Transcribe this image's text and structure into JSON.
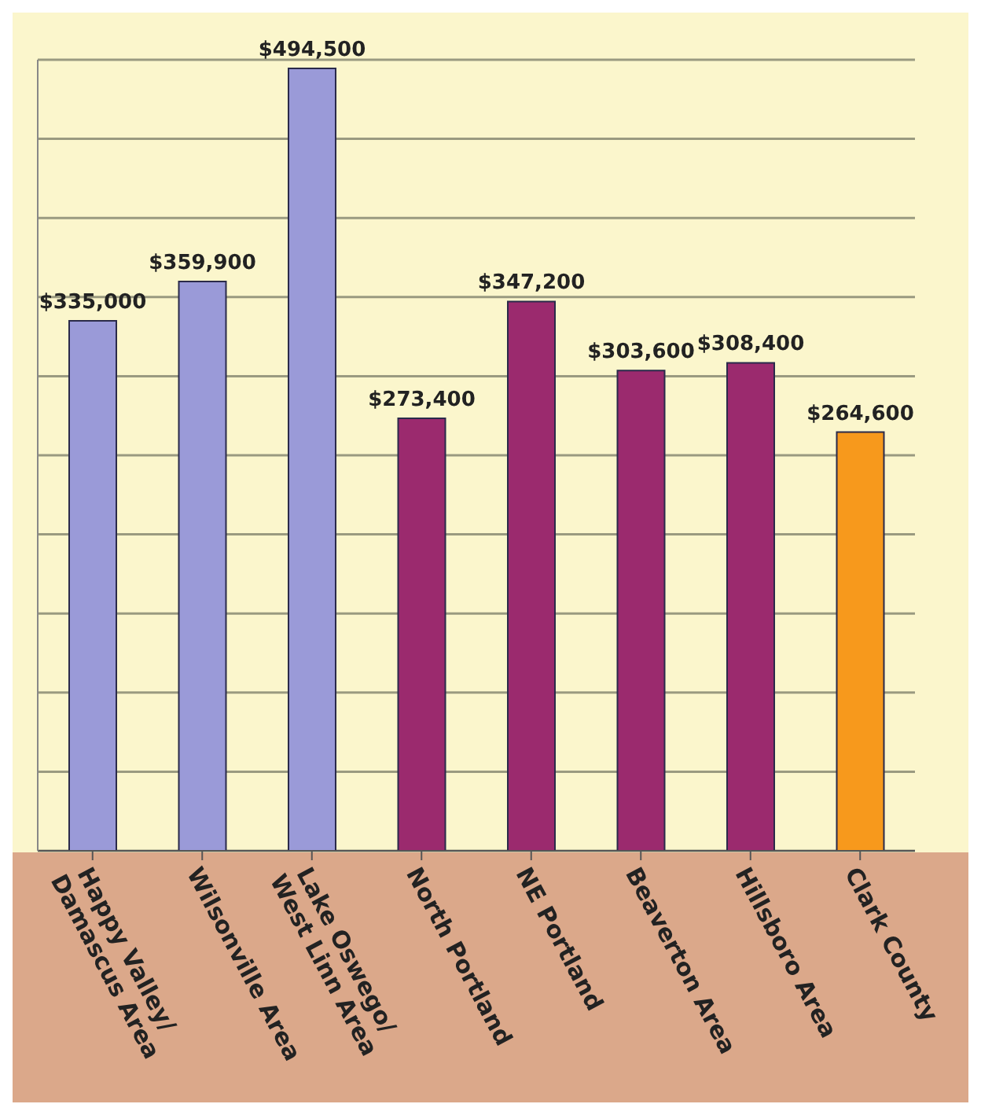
{
  "chart_data": {
    "type": "bar",
    "categories": [
      "Happy Valley/Damascus Area",
      "Wilsonville Area",
      "Lake Oswego/West Linn Area",
      "North Portland",
      "NE Portland",
      "Beaverton Area",
      "Hillsboro Area",
      "Clark County"
    ],
    "values": [
      335000,
      359900,
      494500,
      273400,
      347200,
      303600,
      308400,
      264600
    ],
    "colors": [
      "#9a9ad8",
      "#9a9ad8",
      "#9a9ad8",
      "#9b2a6e",
      "#9b2a6e",
      "#9b2a6e",
      "#9b2a6e",
      "#f7991c"
    ],
    "value_labels": [
      "$335,000",
      "$359,900",
      "$494,500",
      "$273,400",
      "$347,200",
      "$303,600",
      "$308,400",
      "$264,600"
    ],
    "grid": "y",
    "tick_labels": "x"
  }
}
